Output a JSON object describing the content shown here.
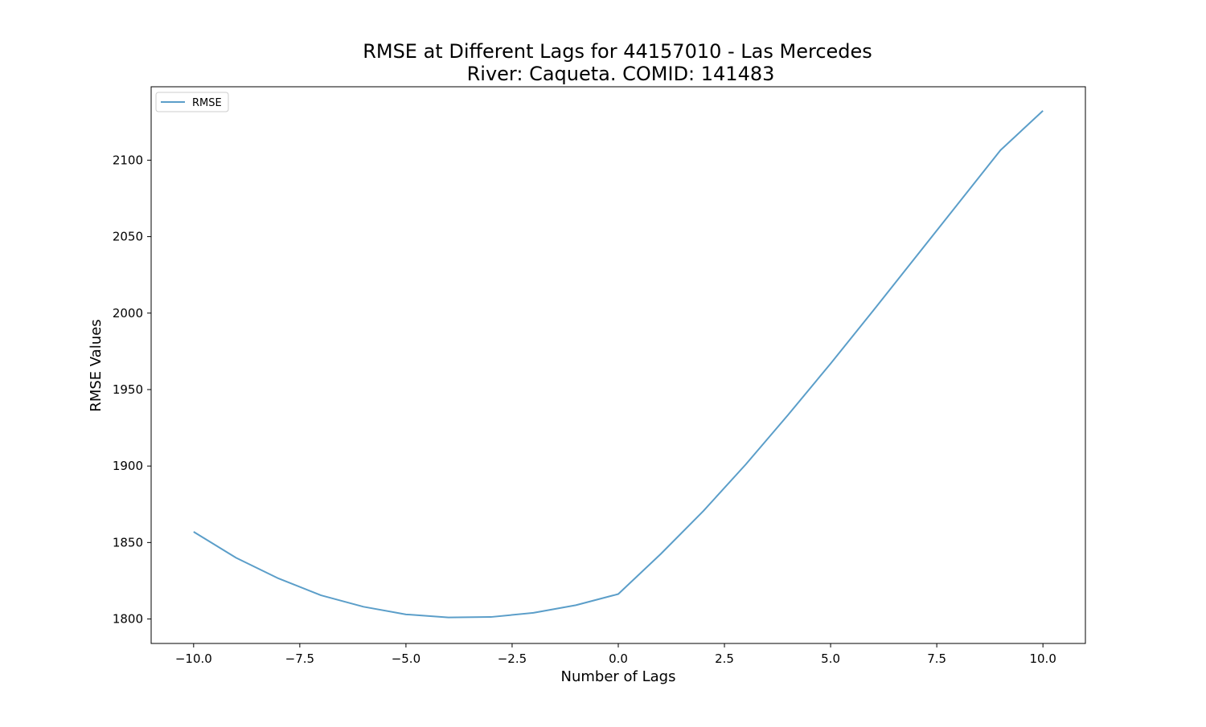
{
  "chart_data": {
    "type": "line",
    "title": "RMSE at Different Lags for 44157010 - Las Mercedes",
    "subtitle": "River: Caqueta. COMID: 141483",
    "xlabel": "Number of Lags",
    "ylabel": "RMSE Values",
    "xlim": [
      -11,
      11
    ],
    "ylim": [
      1784,
      2148
    ],
    "x_ticks": [
      -10.0,
      -7.5,
      -5.0,
      -2.5,
      0.0,
      2.5,
      5.0,
      7.5,
      10.0
    ],
    "x_tick_labels": [
      "−10.0",
      "−7.5",
      "−5.0",
      "−2.5",
      "0.0",
      "2.5",
      "5.0",
      "7.5",
      "10.0"
    ],
    "y_ticks": [
      1800,
      1850,
      1900,
      1950,
      2000,
      2050,
      2100
    ],
    "y_tick_labels": [
      "1800",
      "1850",
      "1900",
      "1950",
      "2000",
      "2050",
      "2100"
    ],
    "legend_position": "top-left",
    "grid": false,
    "series": [
      {
        "name": "RMSE",
        "color": "#5b9ec9",
        "x": [
          -10,
          -9,
          -8,
          -7,
          -6,
          -5,
          -4,
          -3,
          -2,
          -1,
          0,
          1,
          2,
          3,
          4,
          5,
          6,
          7,
          8,
          9,
          10
        ],
        "values": [
          1857,
          1840,
          1826.5,
          1815.5,
          1808,
          1803,
          1801,
          1801.3,
          1804,
          1809,
          1816.3,
          1842.5,
          1870.5,
          1901,
          1933.5,
          1967,
          2001.5,
          2036.5,
          2071.5,
          2106.5,
          2132.3
        ]
      }
    ]
  }
}
